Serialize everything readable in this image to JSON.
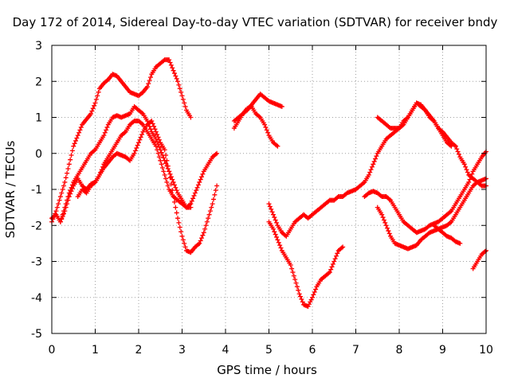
{
  "chart_data": {
    "type": "scatter",
    "title": "Day 172 of 2014, Sidereal Day-to-day VTEC variation (SDTVAR) for receiver bndy",
    "xlabel": "GPS time / hours",
    "ylabel": "SDTVAR / TECUs",
    "xlim": [
      0,
      10
    ],
    "ylim": [
      -5,
      3
    ],
    "xticks": [
      "0",
      "1",
      "2",
      "3",
      "4",
      "5",
      "6",
      "7",
      "8",
      "9",
      "10"
    ],
    "yticks": [
      "-5",
      "-4",
      "-3",
      "-2",
      "-1",
      "0",
      "1",
      "2",
      "3"
    ],
    "grid": true,
    "legend": "none",
    "marker": "plus",
    "color": "#ff0000",
    "series": [
      {
        "x": [
          0.0,
          0.1,
          0.2,
          0.3,
          0.4,
          0.5,
          0.6,
          0.7,
          0.8,
          0.9,
          1.0,
          1.1,
          1.2,
          1.3,
          1.4,
          1.5,
          1.6,
          1.7,
          1.8,
          1.9,
          2.0,
          2.1,
          2.2,
          2.3,
          2.4,
          2.5,
          2.6,
          2.7,
          2.8,
          2.9,
          3.0,
          3.1,
          3.2
        ],
        "y": [
          -1.9,
          -1.6,
          -1.2,
          -0.8,
          -0.3,
          0.2,
          0.5,
          0.8,
          0.95,
          1.1,
          1.4,
          1.8,
          1.95,
          2.05,
          2.2,
          2.15,
          2.0,
          1.85,
          1.7,
          1.65,
          1.6,
          1.7,
          1.85,
          2.2,
          2.4,
          2.5,
          2.6,
          2.6,
          2.3,
          2.0,
          1.6,
          1.2,
          1.0
        ]
      },
      {
        "x": [
          0.2,
          0.3,
          0.4,
          0.5,
          0.6,
          0.7,
          0.8,
          0.9,
          1.0,
          1.1,
          1.2,
          1.3,
          1.4,
          1.5,
          1.6,
          1.7,
          1.8,
          1.9,
          2.0,
          2.1,
          2.2,
          2.3,
          2.4,
          2.5,
          2.6,
          2.7,
          2.8,
          2.9,
          3.0,
          3.1,
          3.2
        ],
        "y": [
          -1.9,
          -1.5,
          -1.1,
          -0.8,
          -0.6,
          -0.4,
          -0.2,
          0.0,
          0.1,
          0.3,
          0.5,
          0.8,
          1.0,
          1.05,
          1.0,
          1.05,
          1.1,
          1.3,
          1.2,
          1.1,
          0.9,
          0.6,
          0.4,
          0.1,
          -0.2,
          -0.5,
          -0.8,
          -1.1,
          -1.3,
          -1.5,
          -1.5
        ]
      },
      {
        "x": [
          0.0,
          0.1,
          0.2,
          0.3,
          0.4,
          0.5,
          0.6,
          0.7,
          0.8,
          0.9,
          1.0,
          1.1,
          1.2,
          1.3,
          1.4,
          1.5,
          1.6,
          1.7,
          1.8,
          1.9,
          2.0,
          2.1,
          2.2,
          2.3,
          2.4,
          2.5,
          2.6,
          2.7,
          2.8,
          2.9,
          3.0,
          3.1,
          3.2,
          3.3,
          3.4,
          3.5,
          3.6,
          3.7,
          3.8
        ],
        "y": [
          -1.8,
          -1.7,
          -1.9,
          -1.6,
          -1.2,
          -0.9,
          -0.7,
          -0.9,
          -1.0,
          -0.85,
          -0.8,
          -0.6,
          -0.4,
          -0.25,
          -0.1,
          0.0,
          -0.05,
          -0.1,
          -0.2,
          0.0,
          0.3,
          0.6,
          0.8,
          0.9,
          0.6,
          0.3,
          0.1,
          -0.5,
          -1.2,
          -1.8,
          -2.3,
          -2.7,
          -2.75,
          -2.6,
          -2.5,
          -2.2,
          -1.8,
          -1.4,
          -0.9
        ]
      },
      {
        "x": [
          0.6,
          0.7,
          0.8,
          0.9,
          1.0,
          1.1,
          1.2,
          1.3,
          1.4,
          1.5,
          1.6,
          1.7,
          1.8,
          1.9,
          2.0,
          2.1,
          2.2,
          2.3,
          2.4,
          2.5,
          2.6,
          2.7,
          2.8,
          2.9,
          3.0,
          3.1,
          3.2,
          3.3,
          3.4,
          3.5,
          3.6,
          3.7,
          3.8
        ],
        "y": [
          -1.2,
          -1.0,
          -1.1,
          -0.9,
          -0.8,
          -0.6,
          -0.3,
          -0.1,
          0.1,
          0.3,
          0.5,
          0.6,
          0.8,
          0.9,
          0.9,
          0.8,
          0.6,
          0.4,
          0.2,
          -0.2,
          -0.6,
          -1.0,
          -1.2,
          -1.3,
          -1.4,
          -1.5,
          -1.4,
          -1.1,
          -0.8,
          -0.5,
          -0.3,
          -0.1,
          0.0
        ]
      },
      {
        "x": [
          4.2,
          4.3,
          4.4,
          4.5,
          4.6,
          4.7,
          4.8,
          4.9,
          5.0,
          5.1,
          5.2,
          5.3
        ],
        "y": [
          0.9,
          1.0,
          1.1,
          1.2,
          1.35,
          1.5,
          1.65,
          1.55,
          1.45,
          1.4,
          1.35,
          1.3
        ]
      },
      {
        "x": [
          4.2,
          4.3,
          4.4,
          4.5,
          4.6,
          4.7,
          4.8,
          4.9,
          5.0,
          5.1,
          5.2
        ],
        "y": [
          0.7,
          0.9,
          1.1,
          1.25,
          1.3,
          1.1,
          1.0,
          0.8,
          0.5,
          0.3,
          0.2
        ]
      },
      {
        "x": [
          5.0,
          5.1,
          5.2,
          5.3,
          5.4,
          5.5,
          5.6,
          5.7,
          5.8,
          5.9,
          6.0,
          6.1,
          6.2,
          6.3,
          6.4,
          6.5,
          6.6,
          6.7
        ],
        "y": [
          -1.9,
          -2.1,
          -2.4,
          -2.7,
          -2.9,
          -3.1,
          -3.5,
          -3.9,
          -4.2,
          -4.25,
          -4.0,
          -3.7,
          -3.5,
          -3.4,
          -3.3,
          -3.0,
          -2.7,
          -2.6
        ]
      },
      {
        "x": [
          5.0,
          5.1,
          5.2,
          5.3,
          5.4,
          5.5,
          5.6,
          5.7,
          5.8,
          5.9,
          6.0,
          6.1,
          6.2,
          6.3,
          6.4,
          6.5,
          6.6,
          6.7,
          6.8,
          6.9,
          7.0,
          7.1,
          7.2,
          7.3,
          7.4,
          7.5,
          7.6,
          7.7,
          7.8,
          7.9,
          8.0,
          8.1,
          8.2,
          8.3,
          8.4,
          8.5,
          8.6,
          8.7,
          8.8,
          8.9,
          9.0,
          9.1,
          9.2,
          9.3,
          9.4,
          9.5,
          9.6,
          9.7,
          9.8,
          9.9,
          10.0
        ],
        "y": [
          -1.4,
          -1.7,
          -2.0,
          -2.2,
          -2.3,
          -2.1,
          -1.9,
          -1.8,
          -1.7,
          -1.8,
          -1.7,
          -1.6,
          -1.5,
          -1.4,
          -1.3,
          -1.3,
          -1.2,
          -1.2,
          -1.1,
          -1.05,
          -1.0,
          -0.9,
          -0.8,
          -0.6,
          -0.3,
          0.0,
          0.2,
          0.4,
          0.5,
          0.6,
          0.7,
          0.8,
          1.0,
          1.2,
          1.4,
          1.3,
          1.2,
          1.0,
          0.9,
          0.7,
          0.6,
          0.45,
          0.3,
          0.2,
          -0.1,
          -0.3,
          -0.6,
          -0.7,
          -0.8,
          -0.9,
          -0.9
        ]
      },
      {
        "x": [
          7.2,
          7.3,
          7.4,
          7.5,
          7.6,
          7.7,
          7.8,
          7.9,
          8.0,
          8.1,
          8.2,
          8.3,
          8.4,
          8.5,
          8.6,
          8.7,
          8.8,
          8.9,
          9.0,
          9.1,
          9.2,
          9.3,
          9.4,
          9.5,
          9.6,
          9.7,
          9.8,
          9.9,
          10.0
        ],
        "y": [
          -1.2,
          -1.1,
          -1.05,
          -1.1,
          -1.2,
          -1.2,
          -1.3,
          -1.5,
          -1.7,
          -1.9,
          -2.0,
          -2.1,
          -2.2,
          -2.15,
          -2.1,
          -2.0,
          -1.95,
          -1.9,
          -1.8,
          -1.7,
          -1.6,
          -1.4,
          -1.2,
          -1.0,
          -0.8,
          -0.5,
          -0.3,
          -0.1,
          0.05
        ]
      },
      {
        "x": [
          7.5,
          7.6,
          7.7,
          7.8,
          7.9,
          8.0,
          8.1,
          8.2,
          8.3,
          8.4,
          8.5,
          8.6,
          8.7,
          8.8,
          8.9,
          9.0,
          9.1,
          9.2,
          9.3,
          9.4,
          9.5,
          9.6,
          9.7,
          9.8,
          9.9,
          10.0
        ],
        "y": [
          -1.5,
          -1.7,
          -2.0,
          -2.3,
          -2.5,
          -2.55,
          -2.6,
          -2.65,
          -2.6,
          -2.55,
          -2.4,
          -2.3,
          -2.2,
          -2.15,
          -2.1,
          -2.05,
          -2.0,
          -1.9,
          -1.7,
          -1.5,
          -1.3,
          -1.1,
          -0.9,
          -0.8,
          -0.75,
          -0.7
        ]
      },
      {
        "x": [
          7.5,
          7.6,
          7.7,
          7.8,
          7.9,
          8.0,
          8.1,
          8.2,
          8.3,
          8.4,
          8.5,
          8.6,
          8.7,
          8.8,
          8.9,
          9.0,
          9.1,
          9.2
        ],
        "y": [
          1.0,
          0.9,
          0.8,
          0.7,
          0.7,
          0.7,
          0.9,
          1.0,
          1.2,
          1.4,
          1.35,
          1.2,
          1.05,
          0.9,
          0.7,
          0.5,
          0.3,
          0.2
        ]
      },
      {
        "x": [
          8.8,
          8.9,
          9.0,
          9.1,
          9.2,
          9.3,
          9.4
        ],
        "y": [
          -2.0,
          -2.1,
          -2.2,
          -2.3,
          -2.35,
          -2.45,
          -2.5
        ]
      },
      {
        "x": [
          9.7,
          9.8,
          9.9,
          10.0
        ],
        "y": [
          -3.2,
          -3.0,
          -2.8,
          -2.7
        ]
      }
    ]
  }
}
